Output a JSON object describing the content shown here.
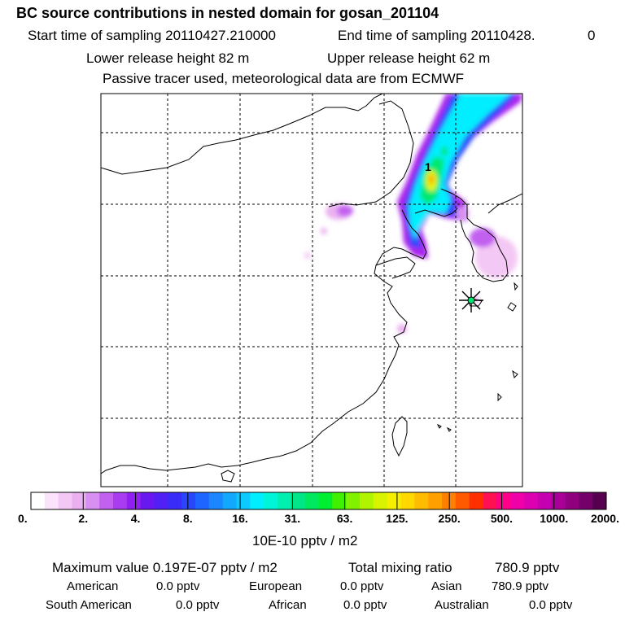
{
  "header": {
    "title": "BC  source contributions in nested domain for gosan_201104",
    "start_label": "Start time of sampling 20110427.210000",
    "end_label": "End time of sampling 20110428.",
    "end_value": "0",
    "lower_label": "Lower release height   82 m",
    "upper_label": "Upper release height   62 m",
    "tracer_label": "Passive tracer used, meteorological data are from ECMWF"
  },
  "map": {
    "cluster_marker": "1",
    "receptor_icon": "star-icon"
  },
  "chart_data": {
    "type": "heatmap",
    "title": "BC  source contributions in nested domain for gosan_201104",
    "colorbar": {
      "unit": "10E-10 pptv / m2",
      "ticks": [
        "0.",
        "2.",
        "4.",
        "8.",
        "16.",
        "31.",
        "63.",
        "125.",
        "250.",
        "500.",
        "1000.",
        "2000."
      ],
      "colors": [
        "#ffffff",
        "#fbe3fb",
        "#f4c8f4",
        "#eab0f0",
        "#d790f2",
        "#c260f0",
        "#aa3cf0",
        "#9020f0",
        "#6a18f0",
        "#5020f4",
        "#3a2cf8",
        "#2a46fc",
        "#1e64ff",
        "#1a86ff",
        "#12a8ff",
        "#0ccaff",
        "#00eeff",
        "#00f4d8",
        "#00f0b0",
        "#00e688",
        "#00e860",
        "#00ee30",
        "#40f000",
        "#80f200",
        "#b0f400",
        "#d8f400",
        "#f4f000",
        "#ffd800",
        "#ffbc00",
        "#ffa000",
        "#ff8000",
        "#ff5a00",
        "#ff3000",
        "#ff1050",
        "#ff0088",
        "#f000a8",
        "#dc00b0",
        "#c400b0",
        "#aa0098",
        "#90007e",
        "#74006a",
        "#580050"
      ]
    },
    "x_gridlines": 5,
    "y_gridlines": 5
  },
  "footer": {
    "max_label": "Maximum value  0.197E-07 pptv / m2",
    "total_label": "Total mixing ratio",
    "total_value": "780.9 pptv",
    "regions": [
      {
        "name": "American",
        "value": "0.0 pptv"
      },
      {
        "name": "European",
        "value": "0.0 pptv"
      },
      {
        "name": "Asian",
        "value": "780.9 pptv"
      },
      {
        "name": "South American",
        "value": "0.0 pptv"
      },
      {
        "name": "African",
        "value": "0.0 pptv"
      },
      {
        "name": "Australian",
        "value": "0.0 pptv"
      }
    ]
  }
}
